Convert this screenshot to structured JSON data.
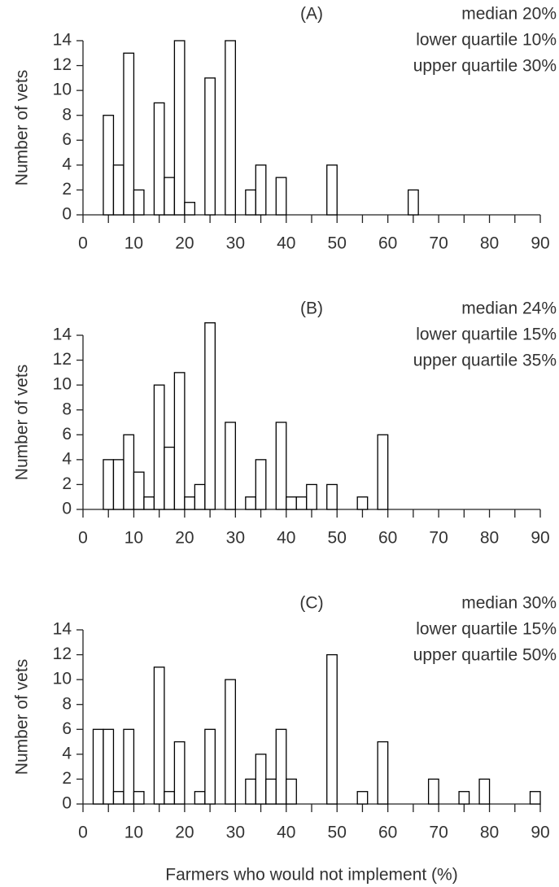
{
  "chart_data": [
    {
      "type": "histogram",
      "label": "(A)",
      "annotations": [
        "median 20%",
        "lower quartile 10%",
        "upper quartile 30%"
      ],
      "ylabel": "Number of vets",
      "bins": [
        0,
        2,
        4,
        6,
        8,
        10,
        12,
        14,
        16,
        18,
        20,
        22,
        24,
        26,
        28,
        30,
        32,
        34,
        36,
        38,
        40,
        42,
        44,
        46,
        48,
        50,
        52,
        54,
        56,
        58,
        60,
        62,
        64,
        66,
        68,
        70,
        72,
        74,
        76,
        78,
        80,
        82,
        84,
        86,
        88,
        90
      ],
      "values": [
        0,
        0,
        8,
        4,
        13,
        2,
        0,
        9,
        3,
        14,
        1,
        0,
        11,
        0,
        14,
        0,
        2,
        4,
        0,
        3,
        0,
        0,
        0,
        0,
        4,
        0,
        0,
        0,
        0,
        0,
        0,
        0,
        2,
        0,
        0,
        0,
        0,
        0,
        0,
        0,
        0,
        0,
        0,
        0,
        0
      ],
      "xlim": [
        0,
        90
      ],
      "ylim": [
        0,
        14
      ],
      "xticks": [
        0,
        10,
        20,
        30,
        40,
        50,
        60,
        70,
        80,
        90
      ],
      "xminorticks": [
        5,
        15,
        25,
        35,
        45,
        55,
        65,
        75,
        85
      ],
      "yticks": [
        0,
        2,
        4,
        6,
        8,
        10,
        12,
        14
      ],
      "color": "#ffffff",
      "edgecolor": "#000000"
    },
    {
      "type": "histogram",
      "label": "(B)",
      "annotations": [
        "median 24%",
        "lower quartile 15%",
        "upper quartile 35%"
      ],
      "ylabel": "Number of vets",
      "bins": [
        0,
        2,
        4,
        6,
        8,
        10,
        12,
        14,
        16,
        18,
        20,
        22,
        24,
        26,
        28,
        30,
        32,
        34,
        36,
        38,
        40,
        42,
        44,
        46,
        48,
        50,
        52,
        54,
        56,
        58,
        60,
        62,
        64,
        66,
        68,
        70,
        72,
        74,
        76,
        78,
        80,
        82,
        84,
        86,
        88,
        90
      ],
      "values": [
        0,
        0,
        4,
        4,
        6,
        3,
        1,
        10,
        5,
        11,
        1,
        2,
        15,
        0,
        7,
        0,
        1,
        4,
        0,
        7,
        1,
        1,
        2,
        0,
        2,
        0,
        0,
        1,
        0,
        6,
        0,
        0,
        0,
        0,
        0,
        0,
        0,
        0,
        0,
        0,
        0,
        0,
        0,
        0,
        0
      ],
      "xlim": [
        0,
        90
      ],
      "ylim": [
        0,
        14
      ],
      "xticks": [
        0,
        10,
        20,
        30,
        40,
        50,
        60,
        70,
        80,
        90
      ],
      "xminorticks": [
        5,
        15,
        25,
        35,
        45,
        55,
        65,
        75,
        85
      ],
      "yticks": [
        0,
        2,
        4,
        6,
        8,
        10,
        12,
        14
      ],
      "color": "#ffffff",
      "edgecolor": "#000000"
    },
    {
      "type": "histogram",
      "label": "(C)",
      "annotations": [
        "median 30%",
        "lower quartile 15%",
        "upper quartile 50%"
      ],
      "ylabel": "Number of vets",
      "xlabel": "Farmers who would not implement (%)",
      "bins": [
        0,
        2,
        4,
        6,
        8,
        10,
        12,
        14,
        16,
        18,
        20,
        22,
        24,
        26,
        28,
        30,
        32,
        34,
        36,
        38,
        40,
        42,
        44,
        46,
        48,
        50,
        52,
        54,
        56,
        58,
        60,
        62,
        64,
        66,
        68,
        70,
        72,
        74,
        76,
        78,
        80,
        82,
        84,
        86,
        88,
        90
      ],
      "values": [
        0,
        6,
        6,
        1,
        6,
        1,
        0,
        11,
        1,
        5,
        0,
        1,
        6,
        0,
        10,
        0,
        2,
        4,
        2,
        6,
        2,
        0,
        0,
        0,
        12,
        0,
        0,
        1,
        0,
        5,
        0,
        0,
        0,
        0,
        2,
        0,
        0,
        1,
        0,
        2,
        0,
        0,
        0,
        0,
        1
      ],
      "xlim": [
        0,
        90
      ],
      "ylim": [
        0,
        14
      ],
      "xticks": [
        0,
        10,
        20,
        30,
        40,
        50,
        60,
        70,
        80,
        90
      ],
      "xminorticks": [
        5,
        15,
        25,
        35,
        45,
        55,
        65,
        75,
        85
      ],
      "yticks": [
        0,
        2,
        4,
        6,
        8,
        10,
        12,
        14
      ],
      "color": "#ffffff",
      "edgecolor": "#000000"
    }
  ]
}
